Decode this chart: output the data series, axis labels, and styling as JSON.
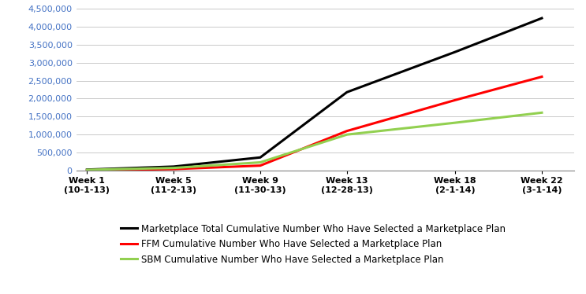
{
  "x_positions": [
    1,
    5,
    9,
    13,
    18,
    22
  ],
  "x_tick_labels": [
    "Week 1\n(10-1-13)",
    "Week 5\n(11-2-13)",
    "Week 9\n(11-30-13)",
    "Week 13\n(12-28-13)",
    "Week 18\n(2-1-14)",
    "Week 22\n(3-1-14)"
  ],
  "total": [
    26000,
    110000,
    364000,
    2180000,
    3300000,
    4240000
  ],
  "ffm": [
    6000,
    40000,
    137000,
    1100000,
    1960000,
    2610000
  ],
  "sbm": [
    20000,
    72000,
    227000,
    1000000,
    1330000,
    1610000
  ],
  "total_color": "#000000",
  "ffm_color": "#FF0000",
  "sbm_color": "#92D050",
  "ytick_color": "#4472C4",
  "xtick_color": "#000000",
  "ylim": [
    0,
    4500000
  ],
  "yticks": [
    0,
    500000,
    1000000,
    1500000,
    2000000,
    2500000,
    3000000,
    3500000,
    4000000,
    4500000
  ],
  "legend_labels": [
    "Marketplace Total Cumulative Number Who Have Selected a Marketplace Plan",
    "FFM Cumulative Number Who Have Selected a Marketplace Plan",
    "SBM Cumulative Number Who Have Selected a Marketplace Plan"
  ],
  "background_color": "#ffffff",
  "line_width": 2.2,
  "figsize": [
    7.43,
    3.74
  ],
  "dpi": 100
}
